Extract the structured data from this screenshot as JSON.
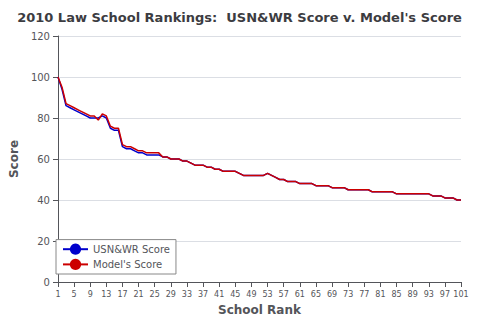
{
  "chart_data": {
    "type": "line",
    "title": "2010 Law School Rankings:  USN&WR Score v. Model's Score",
    "xlabel": "School Rank",
    "ylabel": "Score",
    "x": [
      1,
      2,
      3,
      4,
      5,
      6,
      7,
      8,
      9,
      10,
      11,
      12,
      13,
      14,
      15,
      16,
      17,
      18,
      19,
      20,
      21,
      22,
      23,
      24,
      25,
      26,
      27,
      28,
      29,
      30,
      31,
      32,
      33,
      34,
      35,
      36,
      37,
      38,
      39,
      40,
      41,
      42,
      43,
      44,
      45,
      46,
      47,
      48,
      49,
      50,
      51,
      52,
      53,
      54,
      55,
      56,
      57,
      58,
      59,
      60,
      61,
      62,
      63,
      64,
      65,
      66,
      67,
      68,
      69,
      70,
      71,
      72,
      73,
      74,
      75,
      76,
      77,
      78,
      79,
      80,
      81,
      82,
      83,
      84,
      85,
      86,
      87,
      88,
      89,
      90,
      91,
      92,
      93,
      94,
      95,
      96,
      97,
      98,
      99,
      100,
      101
    ],
    "series": [
      {
        "name": "USN&WR Score",
        "color": "#0000cc",
        "values": [
          100,
          94,
          86,
          85,
          84,
          83,
          82,
          81,
          80,
          80,
          80,
          81,
          80,
          75,
          74,
          74,
          66,
          65,
          65,
          64,
          63,
          63,
          62,
          62,
          62,
          62,
          61,
          61,
          60,
          60,
          60,
          59,
          59,
          58,
          57,
          57,
          57,
          56,
          56,
          55,
          55,
          54,
          54,
          54,
          54,
          53,
          52,
          52,
          52,
          52,
          52,
          52,
          53,
          52,
          51,
          50,
          50,
          49,
          49,
          49,
          48,
          48,
          48,
          48,
          47,
          47,
          47,
          47,
          46,
          46,
          46,
          46,
          45,
          45,
          45,
          45,
          45,
          45,
          44,
          44,
          44,
          44,
          44,
          44,
          43,
          43,
          43,
          43,
          43,
          43,
          43,
          43,
          43,
          42,
          42,
          42,
          41,
          41,
          41,
          40,
          40
        ]
      },
      {
        "name": "Model's Score",
        "color": "#cc0000",
        "values": [
          100,
          95,
          87,
          86,
          85,
          84,
          83,
          82,
          81,
          81,
          79,
          82,
          81,
          76,
          75,
          75,
          67,
          66,
          66,
          65,
          64,
          64,
          63,
          63,
          63,
          63,
          61,
          61,
          60,
          60,
          60,
          59,
          59,
          58,
          57,
          57,
          57,
          56,
          56,
          55,
          55,
          54,
          54,
          54,
          54,
          53,
          52,
          52,
          52,
          52,
          52,
          52,
          53,
          52,
          51,
          50,
          50,
          49,
          49,
          49,
          48,
          48,
          48,
          48,
          47,
          47,
          47,
          47,
          46,
          46,
          46,
          46,
          45,
          45,
          45,
          45,
          45,
          45,
          44,
          44,
          44,
          44,
          44,
          44,
          43,
          43,
          43,
          43,
          43,
          43,
          43,
          43,
          43,
          42,
          42,
          42,
          41,
          41,
          41,
          40,
          40
        ]
      }
    ],
    "xlim": [
      1,
      101
    ],
    "xticks": [
      1,
      5,
      9,
      13,
      17,
      21,
      25,
      29,
      33,
      37,
      41,
      45,
      49,
      53,
      57,
      61,
      65,
      69,
      73,
      77,
      81,
      85,
      89,
      93,
      97,
      101
    ],
    "ylim": [
      0,
      120
    ],
    "yticks": [
      0,
      20,
      40,
      60,
      80,
      100,
      120
    ],
    "grid": true,
    "legend": "lower left"
  }
}
